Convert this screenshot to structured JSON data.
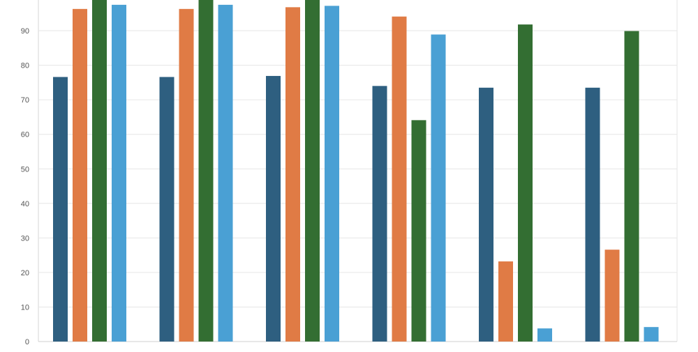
{
  "chart_data": {
    "type": "bar",
    "title": "",
    "xlabel": "",
    "ylabel": "",
    "ylim": [
      0,
      99
    ],
    "y_ticks": [
      "0",
      "10",
      "20",
      "30",
      "40",
      "50",
      "60",
      "70",
      "80",
      "90"
    ],
    "grid": true,
    "categories": [
      "",
      "",
      "",
      "",
      "",
      ""
    ],
    "series": [
      {
        "color": "#2e5f80",
        "values": [
          76.6,
          76.6,
          76.9,
          74.0,
          73.5,
          73.5
        ]
      },
      {
        "color": "#e07b45",
        "values": [
          96.3,
          96.3,
          96.8,
          94.1,
          23.2,
          26.6
        ]
      },
      {
        "color": "#336e32",
        "values": [
          99.5,
          99.5,
          99.5,
          64.1,
          91.8,
          89.9
        ]
      },
      {
        "color": "#4aa0d4",
        "values": [
          97.5,
          97.5,
          97.2,
          88.9,
          3.8,
          4.2
        ]
      }
    ]
  }
}
